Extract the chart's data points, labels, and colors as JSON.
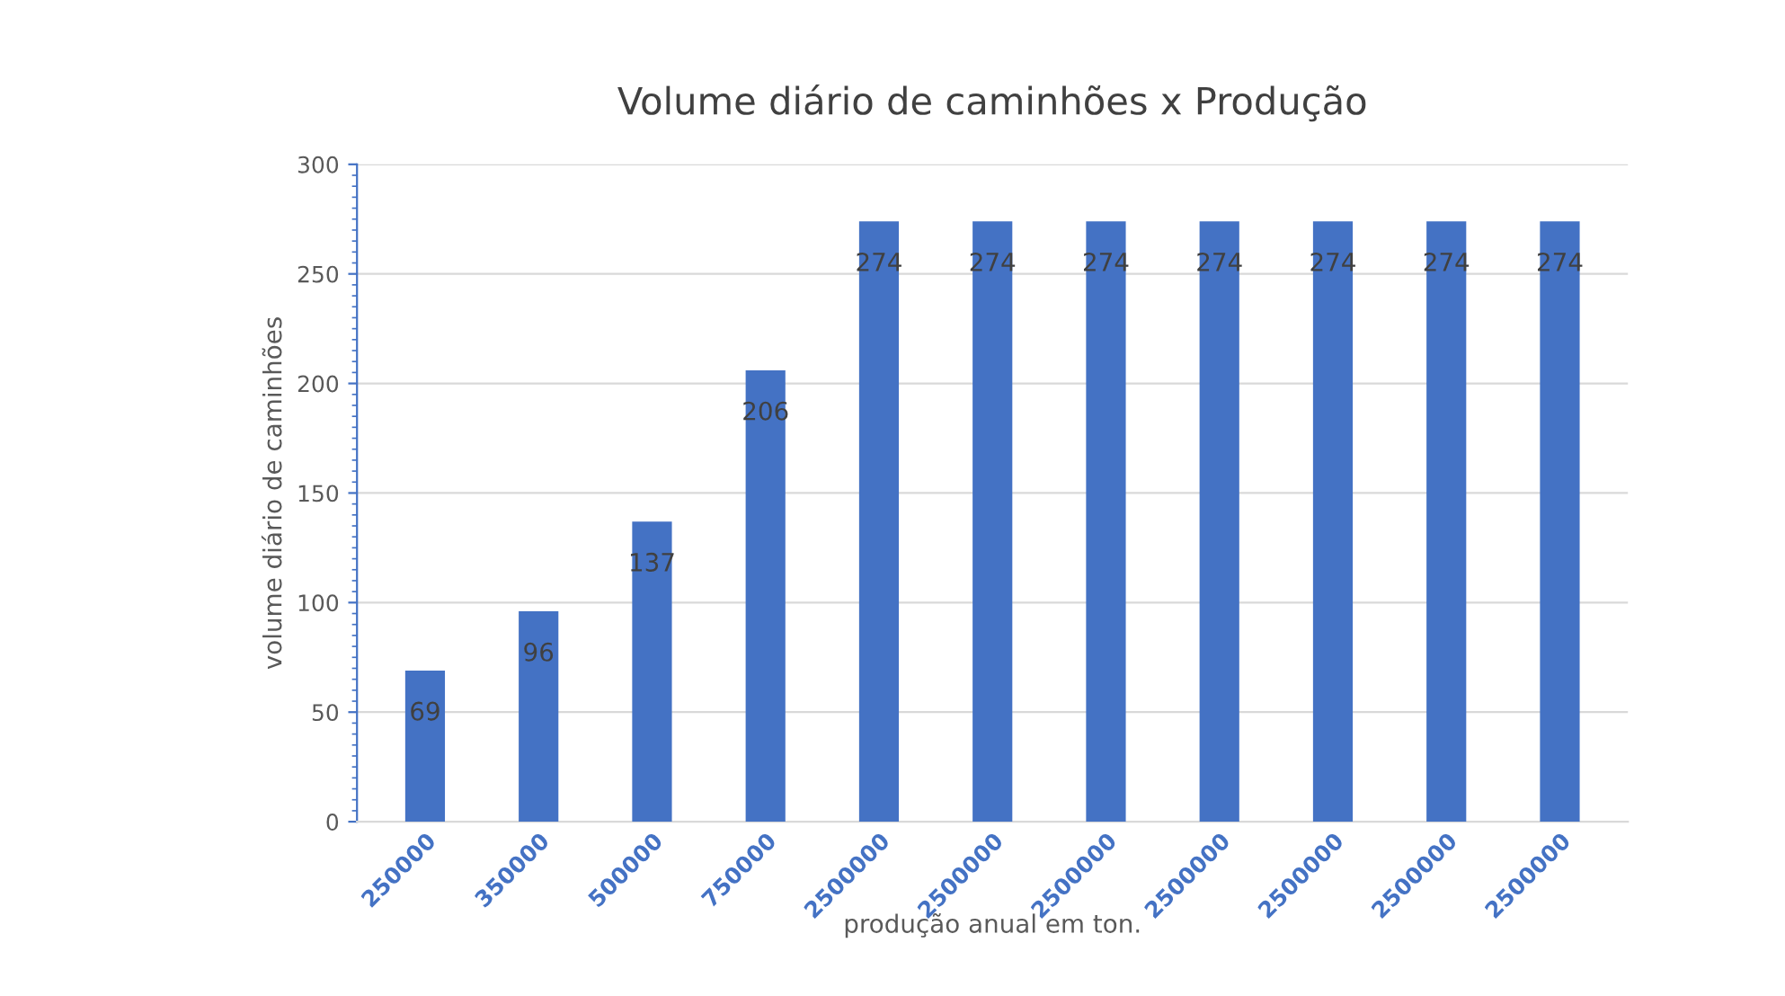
{
  "chart_data": {
    "type": "bar",
    "title": "Volume diário de caminhões x Produção",
    "xlabel": "produção anual em ton.",
    "ylabel": "volume diário de caminhões",
    "categories": [
      "250000",
      "350000",
      "500000",
      "750000",
      "2500000",
      "2500000",
      "2500000",
      "2500000",
      "2500000",
      "2500000",
      "2500000"
    ],
    "values": [
      69,
      96,
      137,
      206,
      274,
      274,
      274,
      274,
      274,
      274,
      274
    ],
    "color": "#4472c4",
    "ylim": [
      0,
      300
    ],
    "yticks": [
      0,
      50,
      100,
      150,
      200,
      250,
      300
    ],
    "grid": "y",
    "data_labels": true
  }
}
